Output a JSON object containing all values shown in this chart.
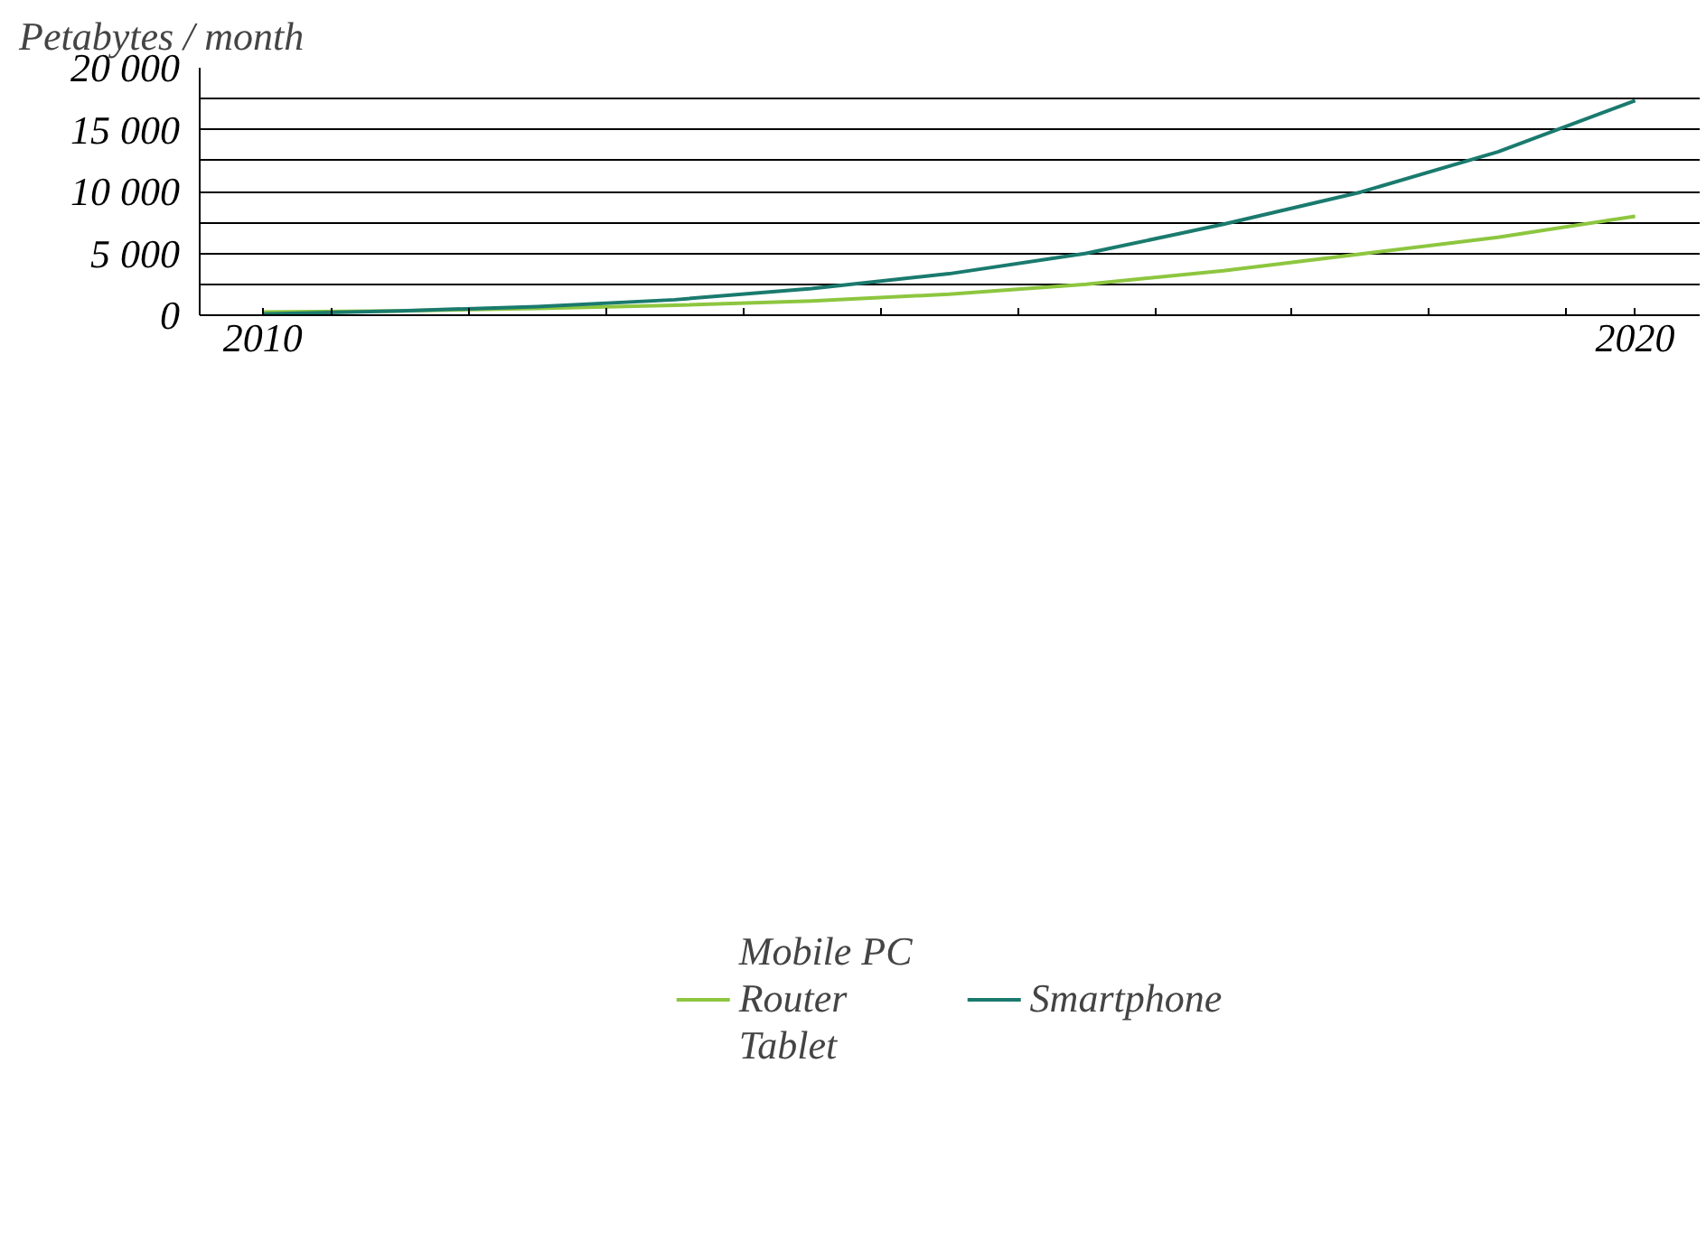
{
  "chart_data": {
    "type": "line",
    "ylabel": "Petabytes / month",
    "x": [
      2010,
      2011,
      2012,
      2013,
      2014,
      2015,
      2016,
      2017,
      2018,
      2019,
      2020
    ],
    "series": [
      {
        "name": "Mobile PC\nRouter\nTablet",
        "color": "#8dc63f",
        "values": [
          250,
          350,
          550,
          800,
          1150,
          1700,
          2500,
          3600,
          4950,
          6300,
          8000
        ]
      },
      {
        "name": "Smartphone",
        "color": "#1a7a6e",
        "values": [
          100,
          350,
          700,
          1250,
          2150,
          3350,
          5000,
          7350,
          9950,
          13200,
          17350
        ]
      }
    ],
    "xlim": [
      2009.54,
      2020.47
    ],
    "xticks": [
      {
        "value": 2010,
        "label": "2010"
      },
      {
        "value": 2010.5,
        "label": null
      },
      {
        "value": 2011.5,
        "label": null
      },
      {
        "value": 2012.5,
        "label": null
      },
      {
        "value": 2013.5,
        "label": null
      },
      {
        "value": 2014.5,
        "label": null
      },
      {
        "value": 2015.5,
        "label": null
      },
      {
        "value": 2016.5,
        "label": null
      },
      {
        "value": 2017.5,
        "label": null
      },
      {
        "value": 2018.5,
        "label": null
      },
      {
        "value": 2019.5,
        "label": null
      },
      {
        "value": 2020,
        "label": "2020"
      }
    ],
    "ylim": [
      0,
      20000
    ],
    "yticks": [
      {
        "value": 0,
        "label": "0"
      },
      {
        "value": 2500,
        "label": null
      },
      {
        "value": 5000,
        "label": "5 000"
      },
      {
        "value": 7500,
        "label": null
      },
      {
        "value": 10000,
        "label": "10 000"
      },
      {
        "value": 12500,
        "label": null
      },
      {
        "value": 15000,
        "label": "15 000"
      },
      {
        "value": 17500,
        "label": null
      },
      {
        "value": 20000,
        "label": "20 000"
      }
    ],
    "grid": "y",
    "legend": "bottom",
    "marker": "none",
    "line_style": "solid"
  }
}
